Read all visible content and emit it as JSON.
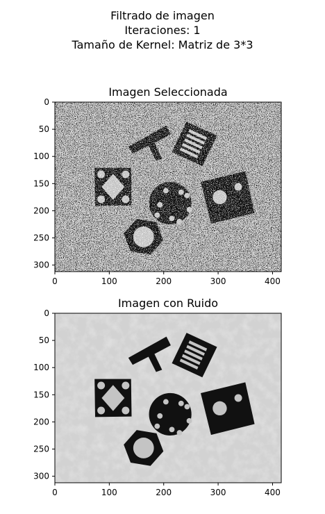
{
  "figure": {
    "suptitle_lines": [
      "Filtrado de imagen",
      "Iteraciones: 1",
      "Tamaño de Kernel:  Matriz de 3*3"
    ]
  },
  "chart_data": [
    {
      "type": "image",
      "title": "Imagen Seleccionada",
      "xlim": [
        0,
        416
      ],
      "ylim": [
        312,
        0
      ],
      "xticks": [
        0,
        100,
        200,
        300,
        400
      ],
      "yticks": [
        0,
        50,
        100,
        150,
        200,
        250,
        300
      ],
      "image": "grayscale photo of black machined parts on a speckled light-gray background (salt-and-pepper noise)"
    },
    {
      "type": "image",
      "title": "Imagen con Ruido",
      "xlim": [
        0,
        416
      ],
      "ylim": [
        312,
        0
      ],
      "xticks": [
        0,
        100,
        200,
        300,
        400
      ],
      "yticks": [
        0,
        50,
        100,
        150,
        200,
        250,
        300
      ],
      "image": "same grayscale photo after 3x3 filtering, smoother background"
    }
  ]
}
